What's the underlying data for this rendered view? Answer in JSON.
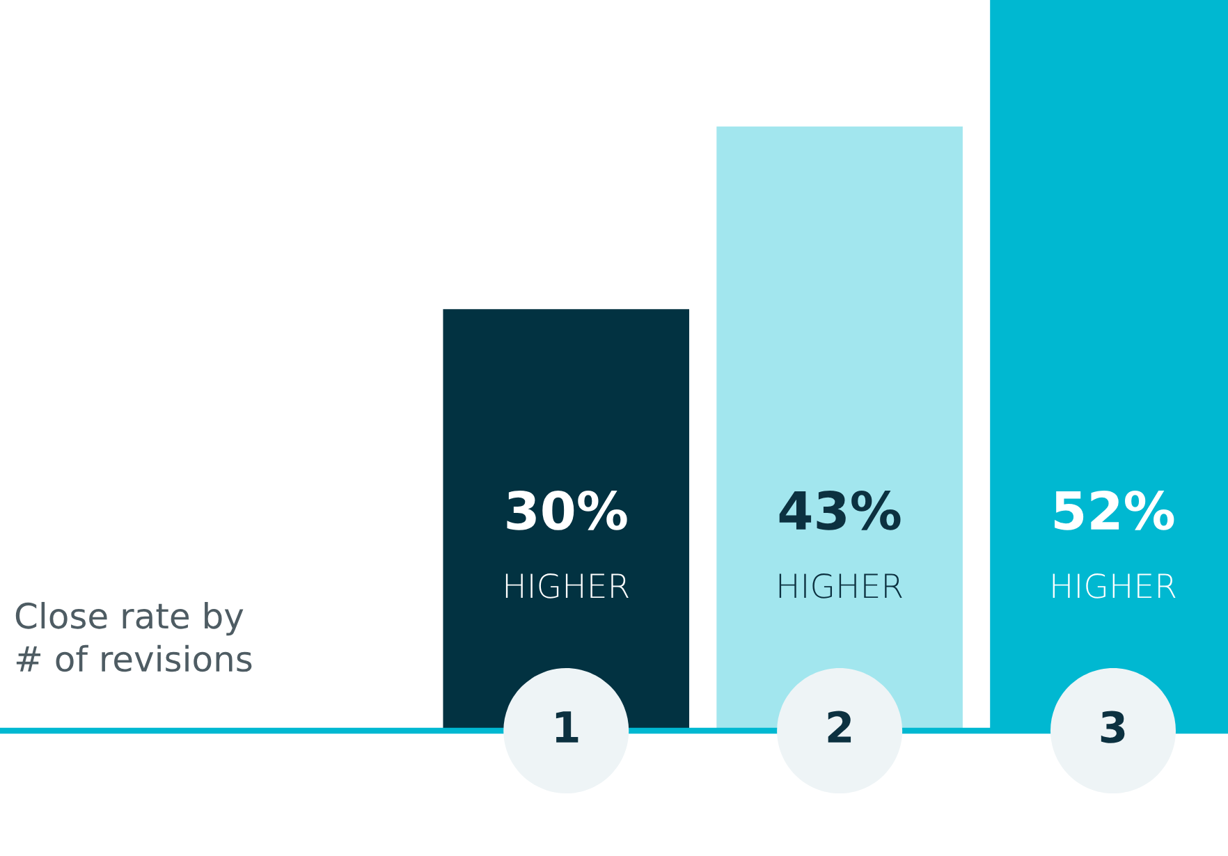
{
  "chart_data": {
    "type": "bar",
    "categories": [
      "1",
      "2",
      "3"
    ],
    "values": [
      30,
      43,
      52
    ],
    "colors": [
      "#023241",
      "#a2e6ee",
      "#00b8d1"
    ],
    "value_labels": [
      "30%\nHIGHER",
      "43%\nHIGHER",
      "52%\nHIGHER"
    ],
    "annotations": [
      "Close rate by\n# of revisions"
    ]
  }
}
